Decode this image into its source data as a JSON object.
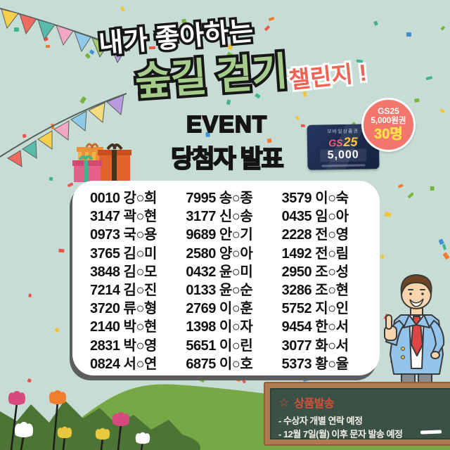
{
  "colors": {
    "background": "#c8dcd6",
    "title_outline": "#171717",
    "title_line1": "#ffffff",
    "title_line2": "#a6cc8b",
    "challenge_text": "#ee6353",
    "heading_text": "#141414",
    "panel_bg": "#ffffff",
    "panel_shadow": "#5d5d5d",
    "badge_bg": "#f3766c",
    "badge_text": "#ffffff",
    "badge_count": "#ffe14d",
    "card_bg": "#1c2b4e",
    "board_bg": "#3c5146",
    "board_frame": "#b17a4e",
    "notice_title": "#d8503a",
    "notice_text": "#f2efe6",
    "hill_light": "#76a845",
    "hill_dark": "#4c7434"
  },
  "title": {
    "line1": "내가 좋아하는",
    "line2": "숲길 걷기",
    "challenge": "챌린지 !"
  },
  "event": {
    "heading": "EVENT",
    "subheading": "당첨자 발표"
  },
  "prize_badge": {
    "line1": "GS25",
    "line2": "5,000원권",
    "count": "30명"
  },
  "gift_card": {
    "top_label": "모바일상품권",
    "brand_gs": "GS",
    "brand_25": "25",
    "amount": "5,000"
  },
  "winners": {
    "columns": [
      [
        "0010 강○희",
        "3147 곽○현",
        "0973 국○용",
        "3765 김○미",
        "3848 김○모",
        "7214 김○진",
        "3720 류○형",
        "2140 박○현",
        "2831 박○영",
        "0824 서○연"
      ],
      [
        "7995 송○종",
        "3177 신○송",
        "9689 안○기",
        "2580 양○아",
        "0432 윤○미",
        "0133 윤○순",
        "2769 이○훈",
        "1398 이○자",
        "5651 이○린",
        "6875 이○호"
      ],
      [
        "3579 이○숙",
        "0435 임○아",
        "2228 전○영",
        "1492 전○림",
        "2950 조○성",
        "3286 조○현",
        "5752 지○인",
        "9454 한○서",
        "3077 화○서",
        "5373 황○율"
      ]
    ]
  },
  "notice_board": {
    "star_icon": "☆",
    "title": "상품발송",
    "items": [
      "- 수상자 개별 연락 예정",
      "- 12월 7일(월) 이후 문자 발송 예정"
    ]
  }
}
